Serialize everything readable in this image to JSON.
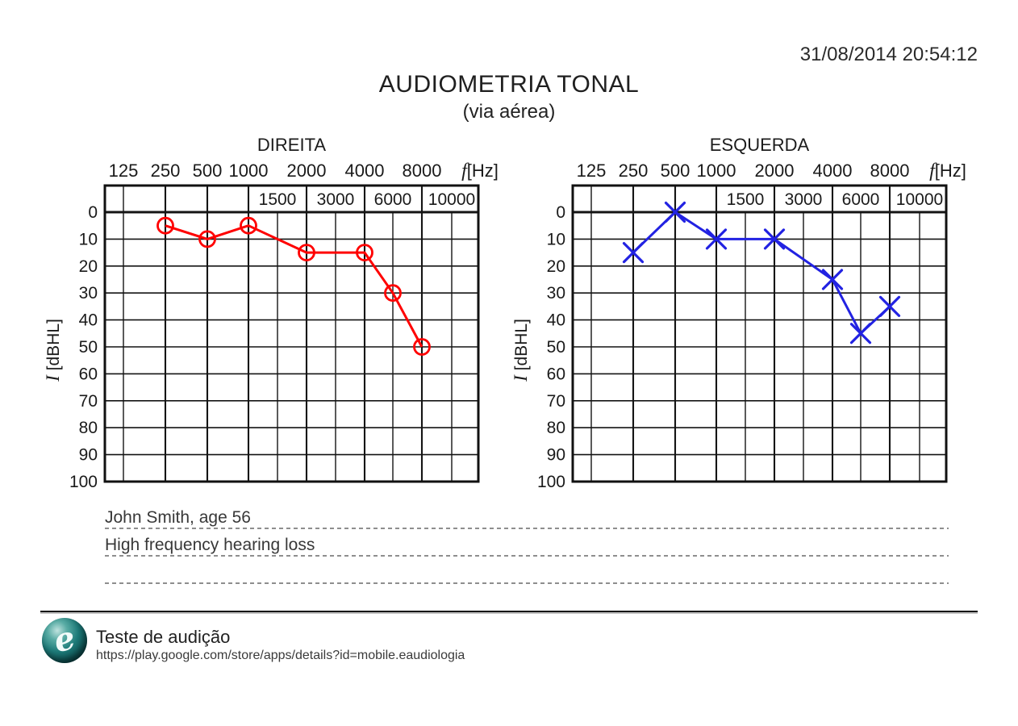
{
  "header": {
    "datetime": "31/08/2014 20:54:12",
    "title": "AUDIOMETRIA TONAL",
    "subtitle": "(via aérea)"
  },
  "axis": {
    "freq_unit_italic": "f",
    "freq_unit_rest": "[Hz]",
    "level_unit_italic": "I",
    "level_unit_rest": " [dBHL]"
  },
  "chart_data": [
    {
      "type": "line",
      "title": "DIREITA",
      "ear": "right",
      "series_color": "#ff0000",
      "marker": "circle",
      "x": [
        250,
        500,
        1000,
        2000,
        4000,
        6000,
        8000
      ],
      "values": [
        5,
        10,
        5,
        15,
        15,
        30,
        50
      ],
      "xlabel": "f [Hz]",
      "ylabel": "I [dBHL]",
      "x_ticks_main": [
        125,
        250,
        500,
        1000,
        2000,
        4000,
        8000
      ],
      "x_ticks_sub": [
        1500,
        3000,
        6000,
        10000
      ],
      "y_ticks": [
        0,
        10,
        20,
        30,
        40,
        50,
        60,
        70,
        80,
        90,
        100
      ],
      "ylim": [
        0,
        100
      ],
      "y_inverted": true,
      "grid": true,
      "legend": "none"
    },
    {
      "type": "line",
      "title": "ESQUERDA",
      "ear": "left",
      "series_color": "#2222e2",
      "marker": "x",
      "x": [
        250,
        500,
        1000,
        2000,
        4000,
        6000,
        8000
      ],
      "values": [
        15,
        0,
        10,
        10,
        25,
        45,
        35
      ],
      "xlabel": "f [Hz]",
      "ylabel": "I [dBHL]",
      "x_ticks_main": [
        125,
        250,
        500,
        1000,
        2000,
        4000,
        8000
      ],
      "x_ticks_sub": [
        1500,
        3000,
        6000,
        10000
      ],
      "y_ticks": [
        0,
        10,
        20,
        30,
        40,
        50,
        60,
        70,
        80,
        90,
        100
      ],
      "ylim": [
        0,
        100
      ],
      "y_inverted": true,
      "grid": true,
      "legend": "none"
    }
  ],
  "notes": {
    "line1": "John Smith, age 56",
    "line2": "High frequency hearing loss",
    "line3": ""
  },
  "footer": {
    "app_name": "Teste de audição",
    "app_url": "https://play.google.com/store/apps/details?id=mobile.eaudiologia",
    "logo_glyph": "e"
  }
}
